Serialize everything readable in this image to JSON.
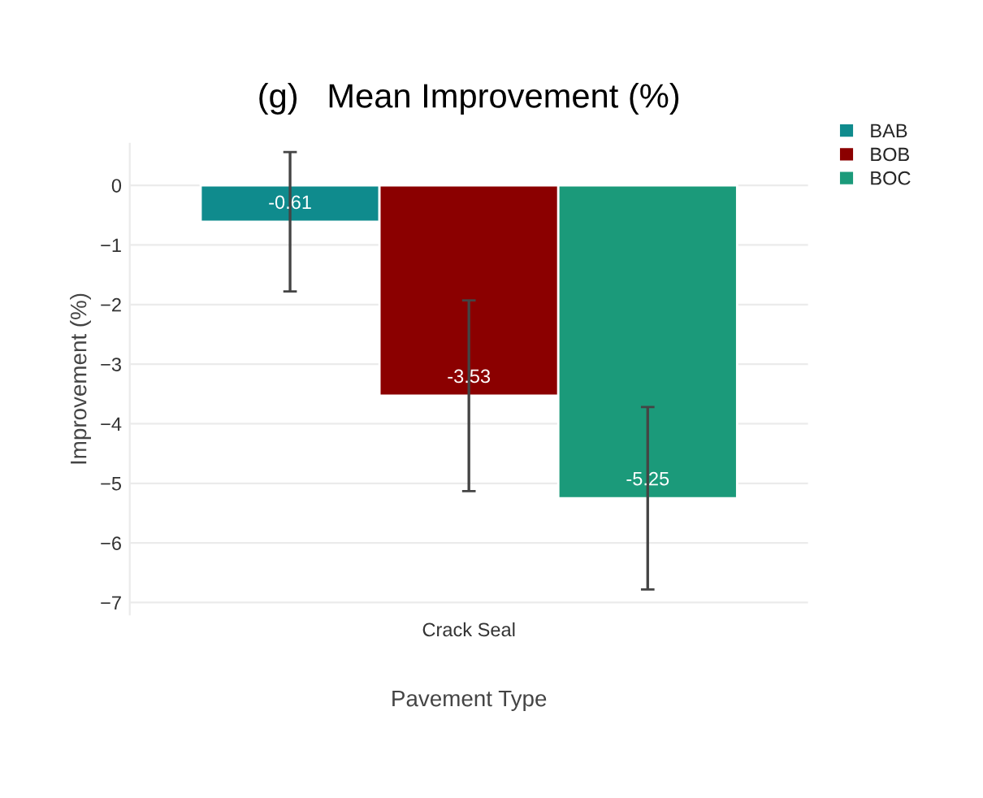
{
  "chart_data": {
    "type": "bar",
    "title": "(g)   Mean Improvement (%)",
    "xlabel": "Pavement Type",
    "ylabel": "Improvement (%)",
    "categories": [
      "Crack Seal"
    ],
    "series": [
      {
        "name": "BAB",
        "color": "#0f8b8d",
        "values": [
          -0.61
        ],
        "errors": [
          1.17
        ],
        "value_labels": [
          "-0.61"
        ]
      },
      {
        "name": "BOB",
        "color": "#8b0000",
        "values": [
          -3.53
        ],
        "errors": [
          1.6
        ],
        "value_labels": [
          "-3.53"
        ]
      },
      {
        "name": "BOC",
        "color": "#1b9a7a",
        "values": [
          -5.25
        ],
        "errors": [
          1.53
        ],
        "value_labels": [
          "-5.25"
        ]
      }
    ],
    "ylim": [
      -7.2,
      0.7
    ],
    "yticks": [
      0,
      {
        "value": -1,
        "label": "−1"
      },
      {
        "value": -2,
        "label": "−2"
      },
      {
        "value": -3,
        "label": "−3"
      },
      {
        "value": -4,
        "label": "−4"
      },
      {
        "value": -5,
        "label": "−5"
      },
      {
        "value": -6,
        "label": "−6"
      },
      {
        "value": -7,
        "label": "−7"
      }
    ],
    "grid": "y",
    "legend": "top right"
  }
}
